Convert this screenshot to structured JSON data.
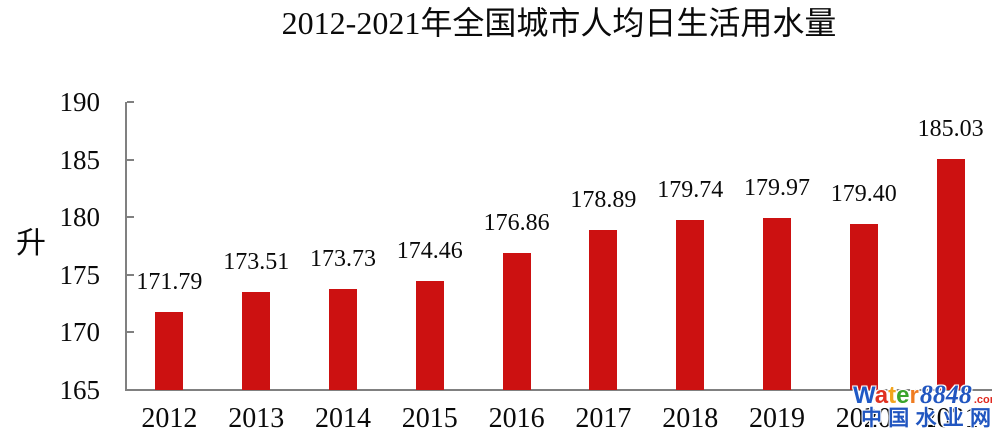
{
  "chart_data": {
    "type": "bar",
    "title": "2012-2021年全国城市人均日生活用水量",
    "ylabel": "升",
    "xlabel": "",
    "categories": [
      "2012",
      "2013",
      "2014",
      "2015",
      "2016",
      "2017",
      "2018",
      "2019",
      "2020",
      "2021"
    ],
    "values": [
      171.79,
      173.51,
      173.73,
      174.46,
      176.86,
      178.89,
      179.74,
      179.97,
      179.4,
      185.03
    ],
    "data_labels": [
      "171.79",
      "173.51",
      "173.73",
      "174.46",
      "176.86",
      "178.89",
      "179.74",
      "179.97",
      "179.40",
      "185.03"
    ],
    "ylim": [
      165,
      190
    ],
    "yticks": [
      165,
      170,
      175,
      180,
      185,
      190
    ],
    "ytick_interval": 5,
    "grid": false,
    "legend": null,
    "bar_color": "#cc1111",
    "axis_color": "#808080"
  },
  "watermark": {
    "word_letters": [
      {
        "ch": "W",
        "color": "#1f5ac6"
      },
      {
        "ch": "a",
        "color": "#e03222"
      },
      {
        "ch": "t",
        "color": "#f2a41d"
      },
      {
        "ch": "e",
        "color": "#3aa42c"
      },
      {
        "ch": "r",
        "color": "#ef7c21"
      }
    ],
    "number": "8848",
    "number_color": "#2156c0",
    "domain_suffix": ".com",
    "suffix_color": "#e02a20",
    "cn_text": "中国水业网",
    "cn_color": "#2156c0"
  }
}
